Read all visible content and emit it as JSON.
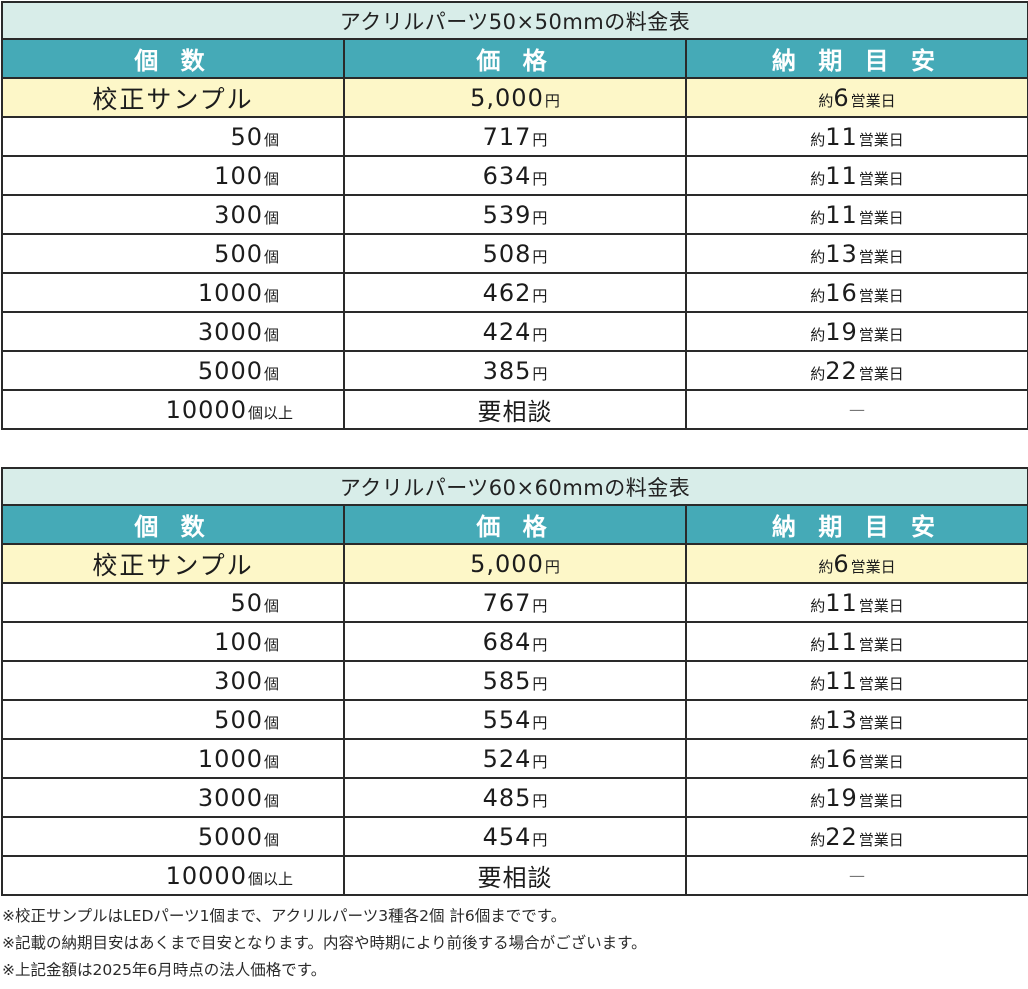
{
  "tables": [
    {
      "title": "アクリルパーツ50×50mmの料金表",
      "headers": [
        "個 数",
        "価 格",
        "納 期 目 安"
      ],
      "sample": {
        "label": "校正サンプル",
        "price": "5,000",
        "price_unit": "円",
        "delivery_prefix": "約",
        "delivery_days": "6",
        "delivery_unit": "営業日"
      },
      "rows": [
        {
          "qty": "50",
          "qty_unit": "個",
          "price": "717",
          "price_unit": "円",
          "delivery_prefix": "約",
          "delivery_days": "11",
          "delivery_unit": "営業日"
        },
        {
          "qty": "100",
          "qty_unit": "個",
          "price": "634",
          "price_unit": "円",
          "delivery_prefix": "約",
          "delivery_days": "11",
          "delivery_unit": "営業日"
        },
        {
          "qty": "300",
          "qty_unit": "個",
          "price": "539",
          "price_unit": "円",
          "delivery_prefix": "約",
          "delivery_days": "11",
          "delivery_unit": "営業日"
        },
        {
          "qty": "500",
          "qty_unit": "個",
          "price": "508",
          "price_unit": "円",
          "delivery_prefix": "約",
          "delivery_days": "13",
          "delivery_unit": "営業日"
        },
        {
          "qty": "1000",
          "qty_unit": "個",
          "price": "462",
          "price_unit": "円",
          "delivery_prefix": "約",
          "delivery_days": "16",
          "delivery_unit": "営業日"
        },
        {
          "qty": "3000",
          "qty_unit": "個",
          "price": "424",
          "price_unit": "円",
          "delivery_prefix": "約",
          "delivery_days": "19",
          "delivery_unit": "営業日"
        },
        {
          "qty": "5000",
          "qty_unit": "個",
          "price": "385",
          "price_unit": "円",
          "delivery_prefix": "約",
          "delivery_days": "22",
          "delivery_unit": "営業日"
        }
      ],
      "last": {
        "qty": "10000",
        "qty_unit": "個以上",
        "price": "要相談",
        "delivery": "—"
      }
    },
    {
      "title": "アクリルパーツ60×60mmの料金表",
      "headers": [
        "個 数",
        "価 格",
        "納 期 目 安"
      ],
      "sample": {
        "label": "校正サンプル",
        "price": "5,000",
        "price_unit": "円",
        "delivery_prefix": "約",
        "delivery_days": "6",
        "delivery_unit": "営業日"
      },
      "rows": [
        {
          "qty": "50",
          "qty_unit": "個",
          "price": "767",
          "price_unit": "円",
          "delivery_prefix": "約",
          "delivery_days": "11",
          "delivery_unit": "営業日"
        },
        {
          "qty": "100",
          "qty_unit": "個",
          "price": "684",
          "price_unit": "円",
          "delivery_prefix": "約",
          "delivery_days": "11",
          "delivery_unit": "営業日"
        },
        {
          "qty": "300",
          "qty_unit": "個",
          "price": "585",
          "price_unit": "円",
          "delivery_prefix": "約",
          "delivery_days": "11",
          "delivery_unit": "営業日"
        },
        {
          "qty": "500",
          "qty_unit": "個",
          "price": "554",
          "price_unit": "円",
          "delivery_prefix": "約",
          "delivery_days": "13",
          "delivery_unit": "営業日"
        },
        {
          "qty": "1000",
          "qty_unit": "個",
          "price": "524",
          "price_unit": "円",
          "delivery_prefix": "約",
          "delivery_days": "16",
          "delivery_unit": "営業日"
        },
        {
          "qty": "3000",
          "qty_unit": "個",
          "price": "485",
          "price_unit": "円",
          "delivery_prefix": "約",
          "delivery_days": "19",
          "delivery_unit": "営業日"
        },
        {
          "qty": "5000",
          "qty_unit": "個",
          "price": "454",
          "price_unit": "円",
          "delivery_prefix": "約",
          "delivery_days": "22",
          "delivery_unit": "営業日"
        }
      ],
      "last": {
        "qty": "10000",
        "qty_unit": "個以上",
        "price": "要相談",
        "delivery": "—"
      }
    }
  ],
  "notes": [
    "※校正サンプルはLEDパーツ1個まで、アクリルパーツ3種各2個 計6個までです。",
    "※記載の納期目安はあくまで目安となります。内容や時期により前後する場合がございます。",
    "※上記金額は2025年6月時点の法人価格です。"
  ],
  "colors": {
    "header_bg": "#45aab7",
    "title_bg": "#d8ede9",
    "sample_bg": "#fdf7c8",
    "border": "#2a2a2a"
  }
}
